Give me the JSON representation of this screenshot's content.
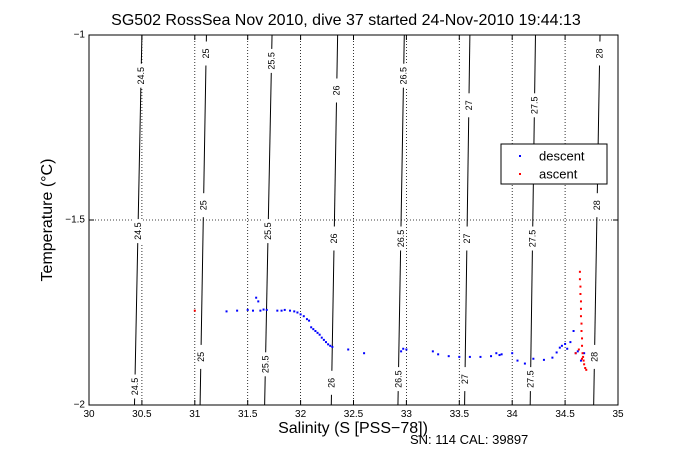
{
  "chart_data": {
    "type": "scatter",
    "title": "SG502 RossSea Nov 2010, dive 37 started 24-Nov-2010 19:44:13",
    "xlabel": "Salinity (S [PSS−78])",
    "ylabel": "Temperature (°C)",
    "xlim": [
      30,
      35
    ],
    "ylim": [
      -2,
      -1
    ],
    "x_ticks": [
      30,
      30.5,
      31,
      31.5,
      32,
      32.5,
      33,
      33.5,
      34,
      34.5,
      35
    ],
    "x_tick_labels": [
      "30",
      "30.5",
      "31",
      "31.5",
      "32",
      "32.5",
      "33",
      "33.5",
      "34",
      "34.5",
      "35"
    ],
    "y_ticks": [
      -2,
      -1.5,
      -1
    ],
    "y_tick_labels": [
      "−2",
      "−1.5",
      "−1"
    ],
    "grid": true,
    "legend_position": "right",
    "annotation": "SN: 114  CAL: 39897",
    "density_contours": [
      {
        "label": "24.5",
        "x_bottom": 30.43,
        "x_top": 30.5,
        "label_ys": [
          -1.11,
          -1.53,
          -1.95
        ]
      },
      {
        "label": "25",
        "x_bottom": 31.05,
        "x_top": 31.11,
        "label_ys": [
          -1.05,
          -1.46,
          -1.87
        ]
      },
      {
        "label": "25.5",
        "x_bottom": 31.66,
        "x_top": 31.73,
        "label_ys": [
          -1.07,
          -1.53,
          -1.89
        ]
      },
      {
        "label": "26",
        "x_bottom": 32.29,
        "x_top": 32.35,
        "label_ys": [
          -1.15,
          -1.55,
          -1.94
        ]
      },
      {
        "label": "26.5",
        "x_bottom": 32.92,
        "x_top": 32.98,
        "label_ys": [
          -1.11,
          -1.55,
          -1.93
        ]
      },
      {
        "label": "27",
        "x_bottom": 33.55,
        "x_top": 33.6,
        "label_ys": [
          -1.19,
          -1.55,
          -1.93
        ]
      },
      {
        "label": "27.5",
        "x_bottom": 34.17,
        "x_top": 34.22,
        "label_ys": [
          -1.19,
          -1.55,
          -1.93
        ]
      },
      {
        "label": "28",
        "x_bottom": 34.77,
        "x_top": 34.83,
        "label_ys": [
          -1.05,
          -1.46,
          -1.87
        ]
      }
    ],
    "series": [
      {
        "name": "descent",
        "color": "#0000ff",
        "points": [
          [
            31.3,
            -1.747
          ],
          [
            31.4,
            -1.745
          ],
          [
            31.5,
            -1.743
          ],
          [
            31.55,
            -1.745
          ],
          [
            31.58,
            -1.71
          ],
          [
            31.6,
            -1.72
          ],
          [
            31.62,
            -1.745
          ],
          [
            31.65,
            -1.742
          ],
          [
            31.68,
            -1.743
          ],
          [
            31.78,
            -1.745
          ],
          [
            31.82,
            -1.745
          ],
          [
            31.85,
            -1.743
          ],
          [
            31.9,
            -1.745
          ],
          [
            31.94,
            -1.747
          ],
          [
            31.97,
            -1.75
          ],
          [
            32.0,
            -1.755
          ],
          [
            32.03,
            -1.76
          ],
          [
            32.06,
            -1.768
          ],
          [
            32.08,
            -1.772
          ],
          [
            32.1,
            -1.79
          ],
          [
            32.12,
            -1.795
          ],
          [
            32.14,
            -1.8
          ],
          [
            32.16,
            -1.805
          ],
          [
            32.18,
            -1.81
          ],
          [
            32.2,
            -1.818
          ],
          [
            32.22,
            -1.824
          ],
          [
            32.24,
            -1.83
          ],
          [
            32.26,
            -1.836
          ],
          [
            32.28,
            -1.84
          ],
          [
            32.3,
            -1.843
          ],
          [
            32.45,
            -1.85
          ],
          [
            32.6,
            -1.86
          ],
          [
            32.95,
            -1.855
          ],
          [
            32.97,
            -1.848
          ],
          [
            33.0,
            -1.85
          ],
          [
            33.25,
            -1.855
          ],
          [
            33.3,
            -1.863
          ],
          [
            33.4,
            -1.868
          ],
          [
            33.5,
            -1.87
          ],
          [
            33.6,
            -1.87
          ],
          [
            33.7,
            -1.87
          ],
          [
            33.8,
            -1.868
          ],
          [
            33.85,
            -1.86
          ],
          [
            33.88,
            -1.865
          ],
          [
            33.9,
            -1.863
          ],
          [
            34.0,
            -1.86
          ],
          [
            34.05,
            -1.88
          ],
          [
            34.12,
            -1.888
          ],
          [
            34.2,
            -1.875
          ],
          [
            34.3,
            -1.878
          ],
          [
            34.38,
            -1.872
          ],
          [
            34.42,
            -1.858
          ],
          [
            34.45,
            -1.845
          ],
          [
            34.47,
            -1.84
          ],
          [
            34.5,
            -1.835
          ],
          [
            34.52,
            -1.848
          ],
          [
            34.55,
            -1.83
          ],
          [
            34.58,
            -1.8
          ],
          [
            34.6,
            -1.86
          ],
          [
            34.62,
            -1.855
          ],
          [
            34.65,
            -1.88
          ],
          [
            34.68,
            -1.86
          ]
        ]
      },
      {
        "name": "ascent",
        "color": "#ff0000",
        "points": [
          [
            31.0,
            -1.745
          ],
          [
            34.64,
            -1.64
          ],
          [
            34.64,
            -1.66
          ],
          [
            34.645,
            -1.68
          ],
          [
            34.645,
            -1.7
          ],
          [
            34.65,
            -1.72
          ],
          [
            34.65,
            -1.74
          ],
          [
            34.65,
            -1.76
          ],
          [
            34.655,
            -1.78
          ],
          [
            34.655,
            -1.8
          ],
          [
            34.66,
            -1.82
          ],
          [
            34.66,
            -1.84
          ],
          [
            34.665,
            -1.86
          ],
          [
            34.67,
            -1.87
          ],
          [
            34.675,
            -1.88
          ],
          [
            34.68,
            -1.89
          ],
          [
            34.69,
            -1.9
          ],
          [
            34.7,
            -1.905
          ],
          [
            34.6,
            -1.86
          ],
          [
            34.63,
            -1.85
          ],
          [
            34.66,
            -1.875
          ]
        ]
      }
    ]
  }
}
